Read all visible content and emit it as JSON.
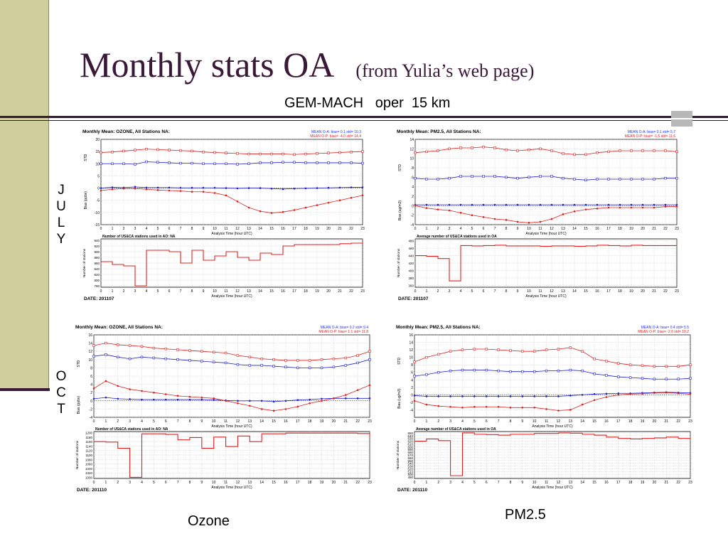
{
  "slide": {
    "title": "Monthly stats OA",
    "title_sub": "(from Yulia’s web page)",
    "subtitle": "GEM-MACH   oper  15 km",
    "row_labels": [
      [
        "J",
        "U",
        "L",
        "Y"
      ],
      [
        "O",
        "C",
        "T"
      ]
    ],
    "col_labels": [
      "Ozone",
      "PM2.5"
    ],
    "colors": {
      "accent": "#3a1838",
      "band": "#cfcf9d",
      "red": "#e02020",
      "blue": "#2020d0",
      "title_blue": "#2030ff"
    }
  },
  "chart_data": [
    {
      "type": "line",
      "id": "july-ozone",
      "title": "Monthly Mean: OZONE, All Stations NA:",
      "legend": [
        "MEAN O-A: bias= 0.1  std= 10.3",
        "MEAN O-P: bias= -4.0  std= 14.4"
      ],
      "x_label": "Analysis Time (hour UTC)",
      "x": [
        0,
        1,
        2,
        3,
        4,
        5,
        6,
        7,
        8,
        9,
        10,
        11,
        12,
        13,
        14,
        15,
        16,
        17,
        18,
        19,
        20,
        21,
        22,
        23
      ],
      "std_ylabel": "STD",
      "std_yticks": [
        20,
        15,
        10,
        5
      ],
      "bias_ylabel": "Bias (ppbv)",
      "bias_yticks": [
        5,
        0,
        -5,
        -10,
        -15
      ],
      "ylim": [
        -15,
        20
      ],
      "series": [
        {
          "name": "MEAN O-A: bias= 0.1  std= 10.3",
          "kind": "std",
          "color": "#2020d0",
          "marker": "open-square",
          "values": [
            10,
            10,
            10,
            9.8,
            10.8,
            10.6,
            10.4,
            10.2,
            10.2,
            10,
            10,
            10,
            9.8,
            10,
            10.4,
            10.4,
            10.6,
            10.6,
            10.4,
            10.4,
            10.4,
            10.4,
            10.4,
            10.2
          ]
        },
        {
          "name": "MEAN O-P: bias= -4.0  std= 14.4",
          "kind": "std",
          "color": "#e02020",
          "marker": "open-square",
          "values": [
            14.6,
            14.8,
            15.2,
            15.6,
            16,
            15.8,
            15.6,
            15.4,
            15.2,
            14.8,
            14.6,
            14.4,
            14.2,
            14,
            14,
            14,
            14,
            13.8,
            14,
            14.2,
            14.4,
            14.6,
            14.8,
            15
          ]
        },
        {
          "name": "MEAN O-A: bias= 0.1  std= 10.3",
          "kind": "bias",
          "color": "#2020d0",
          "marker": "dot",
          "values": [
            0,
            0.3,
            0.2,
            0.5,
            0.2,
            0.2,
            0.2,
            0.1,
            0.1,
            0.1,
            0.1,
            0,
            -0.1,
            0,
            0,
            -0.2,
            -0.4,
            -0.2,
            -0.1,
            0,
            0.1,
            0.2,
            0.3,
            0.3
          ]
        },
        {
          "name": "MEAN O-P: bias= -4.0  std= 14.4",
          "kind": "bias",
          "color": "#e02020",
          "marker": "dot",
          "values": [
            -1,
            -0.5,
            -0.2,
            -0.2,
            -0.5,
            -0.8,
            -1,
            -1.2,
            -1.5,
            -1.5,
            -2,
            -3,
            -5.5,
            -8,
            -9.5,
            -10.2,
            -9.8,
            -9,
            -8,
            -7,
            -6,
            -5,
            -4,
            -3
          ]
        }
      ],
      "stations": {
        "title": "Number of US&CA stations used in AO: NA",
        "ylabel": "Number of stations",
        "yticks": [
          940,
          920,
          900,
          880,
          860,
          840,
          820,
          800,
          780
        ],
        "ylim": [
          775,
          945
        ],
        "values": [
          865,
          855,
          850,
          780,
          905,
          905,
          900,
          860,
          905,
          870,
          885,
          900,
          880,
          870,
          895,
          890,
          920,
          925,
          925,
          925,
          925,
          928,
          930,
          935
        ]
      },
      "date": "DATE:  201107"
    },
    {
      "type": "line",
      "id": "july-pm25",
      "title": "Monthly Mean: PM2.5, All Stations NA:",
      "legend": [
        "MEAN O-A: bias= 0.1  std= 5.7",
        "MEAN O-P: bias= -1.5  std= 11.6"
      ],
      "x_label": "Analysis Time (hour UTC)",
      "x": [
        0,
        1,
        2,
        3,
        4,
        5,
        6,
        7,
        8,
        9,
        10,
        11,
        12,
        13,
        14,
        15,
        16,
        17,
        18,
        19,
        20,
        21,
        22,
        23
      ],
      "std_ylabel": "STD",
      "std_yticks": [
        14,
        12,
        10,
        8,
        6,
        4,
        2
      ],
      "bias_ylabel": "Bias (ug/m3)",
      "bias_yticks": [
        2,
        0,
        -2,
        -4
      ],
      "ylim": [
        -4,
        14
      ],
      "series": [
        {
          "name": "MEAN O-A: bias= 0.1  std= 5.7",
          "kind": "std",
          "color": "#2020d0",
          "marker": "open-square",
          "values": [
            5.8,
            5.6,
            5.6,
            5.8,
            6.2,
            6.2,
            6.2,
            6.2,
            6,
            5.8,
            6,
            6.2,
            6.2,
            5.8,
            5.6,
            5.4,
            5.6,
            5.6,
            5.6,
            5.6,
            5.6,
            5.6,
            5.8,
            5.8
          ]
        },
        {
          "name": "MEAN O-P: bias= -1.5  std= 11.6",
          "kind": "std",
          "color": "#e02020",
          "marker": "open-square",
          "values": [
            11.2,
            11.4,
            11.6,
            12,
            12.2,
            12.2,
            12.4,
            12.2,
            11.8,
            11.6,
            11.8,
            12,
            11.6,
            11,
            10.8,
            10.8,
            11.2,
            11.4,
            11.6,
            11.6,
            11.6,
            11.6,
            11.6,
            11.4
          ]
        },
        {
          "name": "MEAN O-A: bias= 0.1  std= 5.7",
          "kind": "bias",
          "color": "#2020d0",
          "marker": "dot",
          "values": [
            0.2,
            0.2,
            0.2,
            0.2,
            0.2,
            0.2,
            0.2,
            0.2,
            0.2,
            0.2,
            0.2,
            0.2,
            0.2,
            0.2,
            0.2,
            0.2,
            0.2,
            0.2,
            0.2,
            0.2,
            0.2,
            0.2,
            0.2,
            0.2
          ]
        },
        {
          "name": "MEAN O-P: bias= -1.5  std= 11.6",
          "kind": "bias",
          "color": "#e02020",
          "marker": "dot",
          "values": [
            0,
            -0.5,
            -0.8,
            -1,
            -1.5,
            -2,
            -2.4,
            -2.8,
            -3,
            -3.4,
            -3.6,
            -3.4,
            -2.8,
            -1.8,
            -1.2,
            -0.8,
            -0.6,
            -0.4,
            -0.4,
            -0.4,
            -0.4,
            -0.4,
            -0.2,
            -0.2
          ]
        }
      ],
      "stations": {
        "title": "Average number of US&CA stations used in OA",
        "ylabel": "Number of stations",
        "yticks": [
          480,
          460,
          440,
          420,
          400,
          380,
          360
        ],
        "ylim": [
          355,
          485
        ],
        "values": [
          440,
          438,
          432,
          372,
          467,
          466,
          467,
          468,
          466,
          466,
          466,
          465,
          466,
          466,
          465,
          466,
          468,
          467,
          466,
          468,
          467,
          467,
          467,
          468
        ]
      },
      "date": "DATE:  201107"
    },
    {
      "type": "line",
      "id": "oct-ozone",
      "title": "Monthly Mean: OZONE, All Stations NA:",
      "legend": [
        "MEAN O-A: bias= 0.2  std= 9.4",
        "MEAN O-P: bias= 1.1  std= 11.8"
      ],
      "x_label": "Analysis Time (hour UTC)",
      "x": [
        0,
        1,
        2,
        3,
        4,
        5,
        6,
        7,
        8,
        9,
        10,
        11,
        12,
        13,
        14,
        15,
        16,
        17,
        18,
        19,
        20,
        21,
        22,
        23
      ],
      "std_ylabel": "STD",
      "std_yticks": [
        16,
        14,
        12,
        10,
        8,
        6,
        4,
        2
      ],
      "bias_ylabel": "Bias (ppbv)",
      "bias_yticks": [
        2,
        0,
        -2,
        -4
      ],
      "ylim": [
        -4,
        16
      ],
      "series": [
        {
          "name": "MEAN O-A: bias= 0.2  std= 9.4",
          "kind": "std",
          "color": "#2020d0",
          "marker": "open-square",
          "values": [
            10.8,
            11.2,
            10.6,
            10.2,
            10.6,
            10.4,
            10.2,
            10,
            9.8,
            9.6,
            9.4,
            9.2,
            8.8,
            8.6,
            8.6,
            8.4,
            8.2,
            8,
            8,
            8,
            8.2,
            8.6,
            9.2,
            10
          ]
        },
        {
          "name": "MEAN O-P: bias= 1.1  std= 11.8",
          "kind": "std",
          "color": "#e02020",
          "marker": "open-square",
          "values": [
            13.4,
            14,
            13.6,
            13.4,
            13.2,
            12.8,
            12.6,
            12.4,
            12.2,
            12,
            11.8,
            11.6,
            11,
            10.6,
            10.2,
            10,
            9.8,
            9.8,
            9.8,
            10,
            10.2,
            10.4,
            11,
            12
          ]
        },
        {
          "name": "MEAN O-A: bias= 0.2  std= 9.4",
          "kind": "bias",
          "color": "#2020d0",
          "marker": "dot",
          "values": [
            0.5,
            0.8,
            0.5,
            0.4,
            0.3,
            0.3,
            0.3,
            0.3,
            0.3,
            0.3,
            0.2,
            0.1,
            0,
            0,
            0,
            -0.2,
            0,
            0.2,
            0.3,
            0.5,
            0.6,
            0.6,
            0.6,
            0.6
          ]
        },
        {
          "name": "MEAN O-P: bias= 1.1  std= 11.8",
          "kind": "bias",
          "color": "#e02020",
          "marker": "dot",
          "values": [
            3,
            4.8,
            3.6,
            2.8,
            2.4,
            2,
            1.6,
            1.2,
            1,
            0.8,
            0.6,
            0,
            -0.6,
            -1.2,
            -2,
            -2.4,
            -2,
            -1.4,
            -0.6,
            0,
            0.6,
            1.4,
            2.6,
            3.8
          ]
        }
      ],
      "stations": {
        "title": "Number of US&CA stations used in AO: NA",
        "ylabel": "Number of stations",
        "yticks": [
          1200,
          1180,
          1160,
          1140,
          1120,
          1100,
          1080,
          1060,
          1040,
          1020,
          1000
        ],
        "ylim": [
          995,
          1205
        ],
        "values": [
          1160,
          1158,
          1130,
          1000,
          1195,
          1195,
          1192,
          1168,
          1178,
          1130,
          1180,
          1138,
          1185,
          1160,
          1195,
          1195,
          1198,
          1198,
          1198,
          1198,
          1198,
          1198,
          1196,
          1180
        ]
      },
      "date": "DATE:  201110"
    },
    {
      "type": "line",
      "id": "oct-pm25",
      "title": "Monthly Mean: PM2.5, All Stations NA:",
      "legend": [
        "MEAN O-A: bias= 0.4  std= 5.5",
        "MEAN O-P: bias= -2.0  std= 10.2"
      ],
      "x_label": "Analysis Time (hour UTC)",
      "x": [
        0,
        1,
        2,
        3,
        4,
        5,
        6,
        7,
        8,
        9,
        10,
        11,
        12,
        13,
        14,
        15,
        16,
        17,
        18,
        19,
        20,
        21,
        22,
        23
      ],
      "std_ylabel": "STD",
      "std_yticks": [
        16,
        14,
        12,
        10,
        8,
        6,
        4,
        2
      ],
      "bias_ylabel": "Bias (ug/m3)",
      "bias_yticks": [
        2,
        0,
        -2,
        -4
      ],
      "ylim": [
        -6,
        16
      ],
      "series": [
        {
          "name": "MEAN O-A: bias= 0.4  std= 5.5",
          "kind": "std",
          "color": "#2020d0",
          "marker": "open-square",
          "values": [
            5,
            5.4,
            6,
            6.4,
            6.6,
            6.6,
            6.6,
            6.4,
            6.2,
            6.2,
            6.2,
            6.4,
            6.4,
            6.6,
            6.4,
            5.6,
            5.2,
            4.8,
            4.6,
            4.4,
            4.2,
            4.2,
            4.2,
            4.4
          ]
        },
        {
          "name": "MEAN O-P: bias= -2.0  std= 10.2",
          "kind": "std",
          "color": "#e02020",
          "marker": "open-square",
          "values": [
            8.8,
            10,
            10.8,
            11.6,
            12,
            12.2,
            12.2,
            12,
            11.8,
            11.6,
            11.6,
            12,
            12.2,
            12.6,
            11.6,
            9.6,
            9,
            8.4,
            8,
            7.8,
            7.6,
            7.6,
            7.6,
            8
          ]
        },
        {
          "name": "MEAN O-A: bias= 0.4  std= 5.5",
          "kind": "bias",
          "color": "#2020d0",
          "marker": "dot",
          "values": [
            -0.2,
            -0.4,
            -0.4,
            -0.4,
            -0.4,
            -0.4,
            -0.4,
            -0.4,
            -0.4,
            -0.4,
            -0.4,
            -0.4,
            -0.4,
            -0.2,
            0,
            0.2,
            0.3,
            0.4,
            0.4,
            0.5,
            0.6,
            0.7,
            0.6,
            0.5
          ]
        },
        {
          "name": "MEAN O-P: bias= -2.0  std= 10.2",
          "kind": "bias",
          "color": "#e02020",
          "marker": "dot",
          "values": [
            -1.6,
            -2.6,
            -3,
            -3.2,
            -3.4,
            -3.2,
            -3.2,
            -3.2,
            -3.4,
            -3.4,
            -3.4,
            -3.8,
            -4.2,
            -4,
            -2.6,
            -1.4,
            -0.6,
            0,
            0.2,
            0.3,
            0.5,
            0.6,
            0.4,
            0.2
          ]
        }
      ],
      "stations": {
        "title": "Average number of US&CA stations used in OA",
        "ylabel": "Number of stations",
        "yticks": [
          650,
          640,
          630,
          620,
          610,
          600,
          590,
          580,
          570,
          560,
          550,
          540,
          530,
          520,
          510,
          500,
          490
        ],
        "ylim": [
          485,
          655
        ],
        "values": [
          620,
          628,
          622,
          495,
          650,
          645,
          644,
          642,
          645,
          645,
          648,
          648,
          650,
          649,
          645,
          642,
          635,
          630,
          628,
          630,
          632,
          635,
          630,
          625
        ]
      },
      "date": "DATE:  201110"
    }
  ]
}
